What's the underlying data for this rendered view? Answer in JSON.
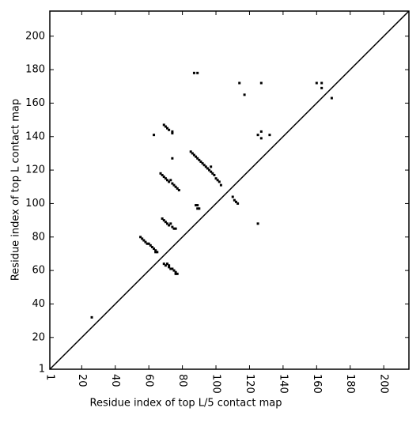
{
  "chart_data": {
    "type": "scatter",
    "x_label": "Residue index of top L/5 contact map",
    "y_label": "Residue index of top L contact map",
    "xlim": [
      1,
      215
    ],
    "ylim": [
      1,
      215
    ],
    "xticks": [
      1,
      20,
      40,
      60,
      80,
      100,
      120,
      140,
      160,
      180,
      200
    ],
    "yticks": [
      1,
      20,
      40,
      60,
      80,
      100,
      120,
      140,
      160,
      180,
      200
    ],
    "color": "#000000",
    "x": [
      26,
      55,
      56,
      57,
      58,
      59,
      60,
      61,
      62,
      63,
      64,
      64,
      65,
      69,
      70,
      71,
      72,
      72,
      73,
      74,
      75,
      76,
      76,
      77,
      68,
      69,
      70,
      71,
      72,
      73,
      74,
      75,
      76,
      67,
      68,
      69,
      70,
      71,
      72,
      73,
      74,
      75,
      76,
      77,
      78,
      69,
      70,
      71,
      72,
      74,
      74,
      63,
      74,
      85,
      86,
      87,
      88,
      89,
      90,
      91,
      92,
      93,
      94,
      95,
      96,
      97,
      98,
      99,
      100,
      101,
      102,
      103,
      97,
      88,
      89,
      89,
      90,
      110,
      111,
      112,
      113,
      125,
      87,
      89,
      114,
      117,
      127,
      160,
      163,
      163,
      125,
      127,
      127,
      132,
      169
    ],
    "values": [
      32,
      80,
      79,
      78,
      77,
      76,
      76,
      75,
      74,
      73,
      72,
      71,
      71,
      64,
      63,
      64,
      63,
      62,
      61,
      61,
      60,
      59,
      58,
      58,
      91,
      90,
      89,
      88,
      87,
      88,
      86,
      85,
      85,
      118,
      117,
      116,
      115,
      114,
      113,
      114,
      112,
      111,
      110,
      109,
      108,
      147,
      146,
      145,
      144,
      142,
      143,
      141,
      127,
      131,
      130,
      129,
      128,
      127,
      126,
      125,
      124,
      123,
      122,
      121,
      120,
      119,
      118,
      117,
      115,
      114,
      113,
      111,
      122,
      99,
      99,
      97,
      97,
      104,
      102,
      101,
      100,
      88,
      178,
      178,
      172,
      165,
      172,
      172,
      172,
      169,
      141,
      143,
      139,
      141,
      163
    ]
  }
}
